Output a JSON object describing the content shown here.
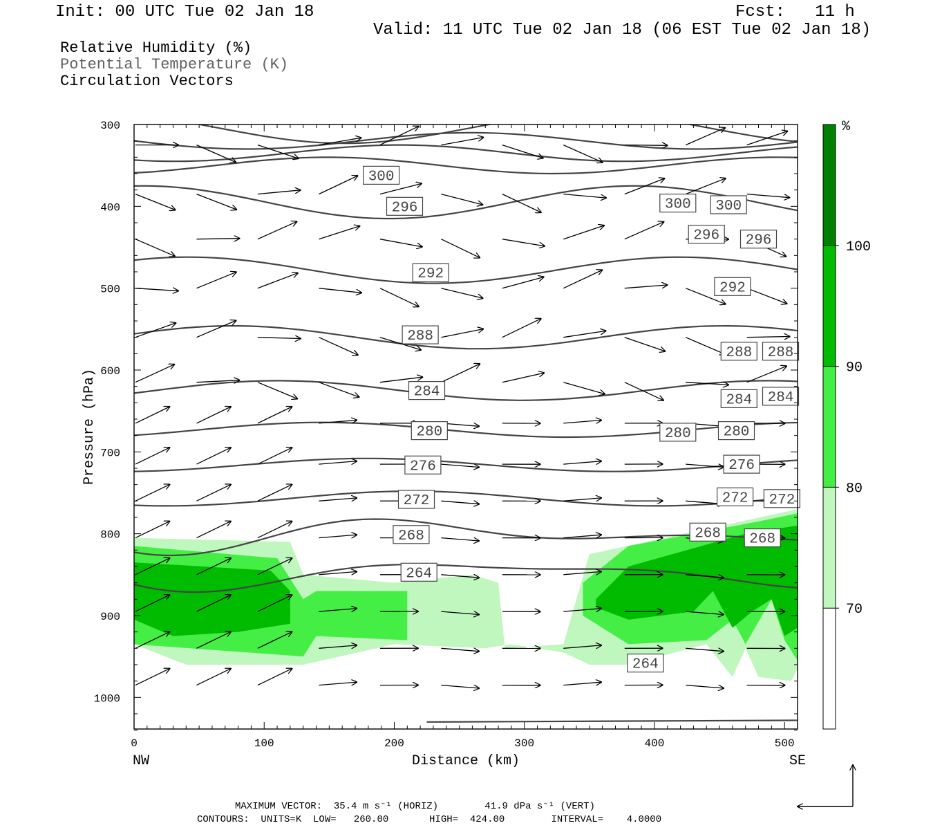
{
  "header": {
    "init": "Init: 00 UTC Tue 02 Jan 18",
    "fcst": "Fcst:   11 h",
    "valid": "Valid: 11 UTC Tue 02 Jan 18 (06 EST Tue 02 Jan 18)"
  },
  "legend": {
    "items": [
      {
        "label": "Relative Humidity (%)"
      },
      {
        "label": "Potential Temperature (K)"
      },
      {
        "label": "Circulation Vectors"
      }
    ]
  },
  "chart_data": {
    "type": "heatmap",
    "title": "",
    "xlabel": "Distance (km)",
    "ylabel": "Pressure (hPa)",
    "xlim": [
      0,
      510
    ],
    "ylim": [
      1040,
      300
    ],
    "x_ticks": [
      0,
      100,
      200,
      300,
      400,
      500
    ],
    "y_ticks": [
      300,
      400,
      500,
      600,
      700,
      800,
      900,
      1000
    ],
    "x_endpoints": {
      "left": "NW",
      "right": "SE"
    },
    "grid": false,
    "colorbar": {
      "unit": "%",
      "levels": [
        70,
        80,
        90,
        100
      ],
      "colors": [
        "#ffffff",
        "#bff7bf",
        "#45ee45",
        "#00bb00",
        "#007f00"
      ]
    },
    "rh_regions": [
      {
        "level": 70,
        "x": [
          0,
          120,
          130,
          200,
          260,
          280,
          285,
          330,
          350,
          510,
          510,
          505,
          480,
          470,
          460,
          440,
          380,
          350,
          330,
          290,
          270,
          200,
          130,
          40,
          0
        ],
        "p": [
          805,
          810,
          850,
          860,
          850,
          860,
          940,
          935,
          825,
          770,
          965,
          980,
          975,
          940,
          975,
          935,
          960,
          960,
          945,
          935,
          940,
          935,
          960,
          960,
          935
        ]
      },
      {
        "level": 80,
        "x": [
          0,
          110,
          130,
          140,
          210,
          210,
          140,
          130,
          0
        ],
        "p": [
          815,
          830,
          880,
          870,
          870,
          930,
          925,
          950,
          935
        ]
      },
      {
        "level": 80,
        "x": [
          345,
          380,
          480,
          510,
          510,
          500,
          490,
          470,
          460,
          440,
          380,
          345
        ],
        "p": [
          860,
          815,
          785,
          775,
          955,
          930,
          880,
          935,
          905,
          930,
          935,
          900
        ]
      },
      {
        "level": 90,
        "x": [
          0,
          105,
          120,
          120,
          80,
          30,
          0
        ],
        "p": [
          835,
          845,
          870,
          910,
          920,
          925,
          905
        ]
      },
      {
        "level": 90,
        "x": [
          355,
          380,
          470,
          490,
          510,
          510,
          500,
          490,
          475,
          460,
          445,
          430,
          380,
          355
        ],
        "p": [
          880,
          840,
          800,
          795,
          790,
          915,
          925,
          880,
          895,
          915,
          870,
          895,
          905,
          890
        ]
      }
    ],
    "theta_contours": [
      {
        "level": 300,
        "label_x": [
          190,
          418,
          457
        ],
        "label_p": [
          362,
          396,
          398
        ]
      },
      {
        "level": 296,
        "label_x": [
          208,
          440,
          480
        ],
        "label_p": [
          400,
          434,
          440
        ]
      },
      {
        "level": 292,
        "label_x": [
          228,
          460
        ],
        "label_p": [
          481,
          498
        ]
      },
      {
        "level": 288,
        "label_x": [
          220,
          465,
          497
        ],
        "label_p": [
          557,
          577,
          577
        ]
      },
      {
        "level": 284,
        "label_x": [
          225,
          465,
          497
        ],
        "label_p": [
          625,
          635,
          632
        ]
      },
      {
        "level": 280,
        "label_x": [
          227,
          418,
          463
        ],
        "label_p": [
          674,
          676,
          674
        ]
      },
      {
        "level": 276,
        "label_x": [
          222,
          467
        ],
        "label_p": [
          716,
          715
        ]
      },
      {
        "level": 272,
        "label_x": [
          217,
          462,
          498
        ],
        "label_p": [
          758,
          755,
          757
        ]
      },
      {
        "level": 268,
        "label_x": [
          213,
          441,
          483
        ],
        "label_p": [
          801,
          798,
          805
        ]
      },
      {
        "level": 264,
        "label_x": [
          219,
          393
        ],
        "label_p": [
          847,
          958
        ]
      }
    ],
    "contour_info": {
      "units": "K",
      "low": "260.00",
      "high": "424.00",
      "interval": "4.0000"
    },
    "max_vector": {
      "horiz": "35.4 m s⁻¹ (HORIZ)",
      "vert": "41.9 dPa s⁻¹ (VERT)"
    }
  },
  "footer": {
    "max_vector": "MAXIMUM VECTOR:  35.4 m s⁻¹ (HORIZ)        41.9 dPa s⁻¹ (VERT)",
    "contours": "CONTOURS:  UNITS=K  LOW=   260.00       HIGH=  424.00        INTERVAL=    4.0000"
  }
}
